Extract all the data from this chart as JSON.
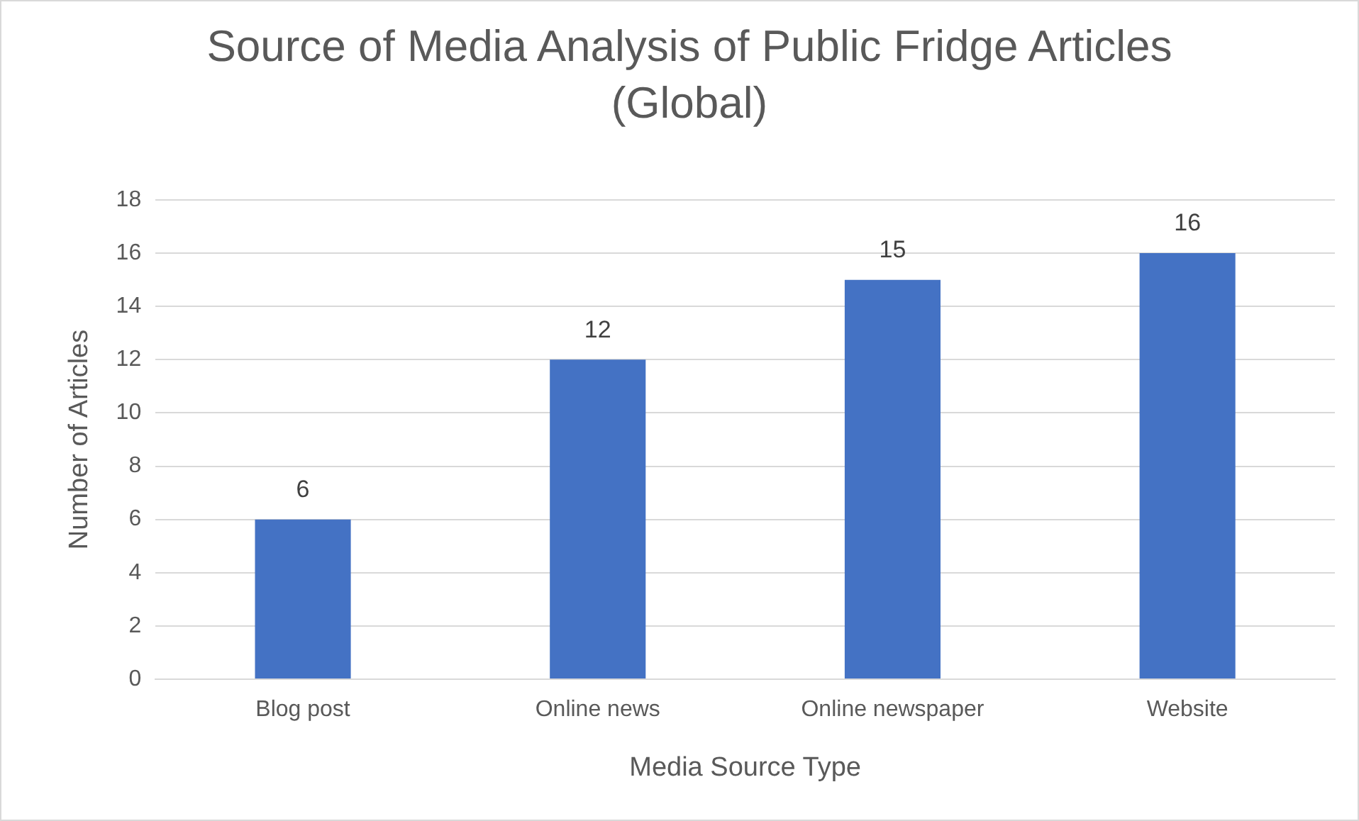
{
  "chart_data": {
    "type": "bar",
    "title": "Source of Media Analysis of Public Fridge Articles (Global)",
    "xlabel": "Media Source Type",
    "ylabel": "Number of Articles",
    "categories": [
      "Blog post",
      "Online news",
      "Online newspaper",
      "Website"
    ],
    "values": [
      6,
      12,
      15,
      16
    ],
    "color": "#4472c4",
    "ylim": [
      0,
      18
    ],
    "yticks": [
      0,
      2,
      4,
      6,
      8,
      10,
      12,
      14,
      16,
      18
    ],
    "grid": "y",
    "data_labels": true,
    "legend": false
  }
}
